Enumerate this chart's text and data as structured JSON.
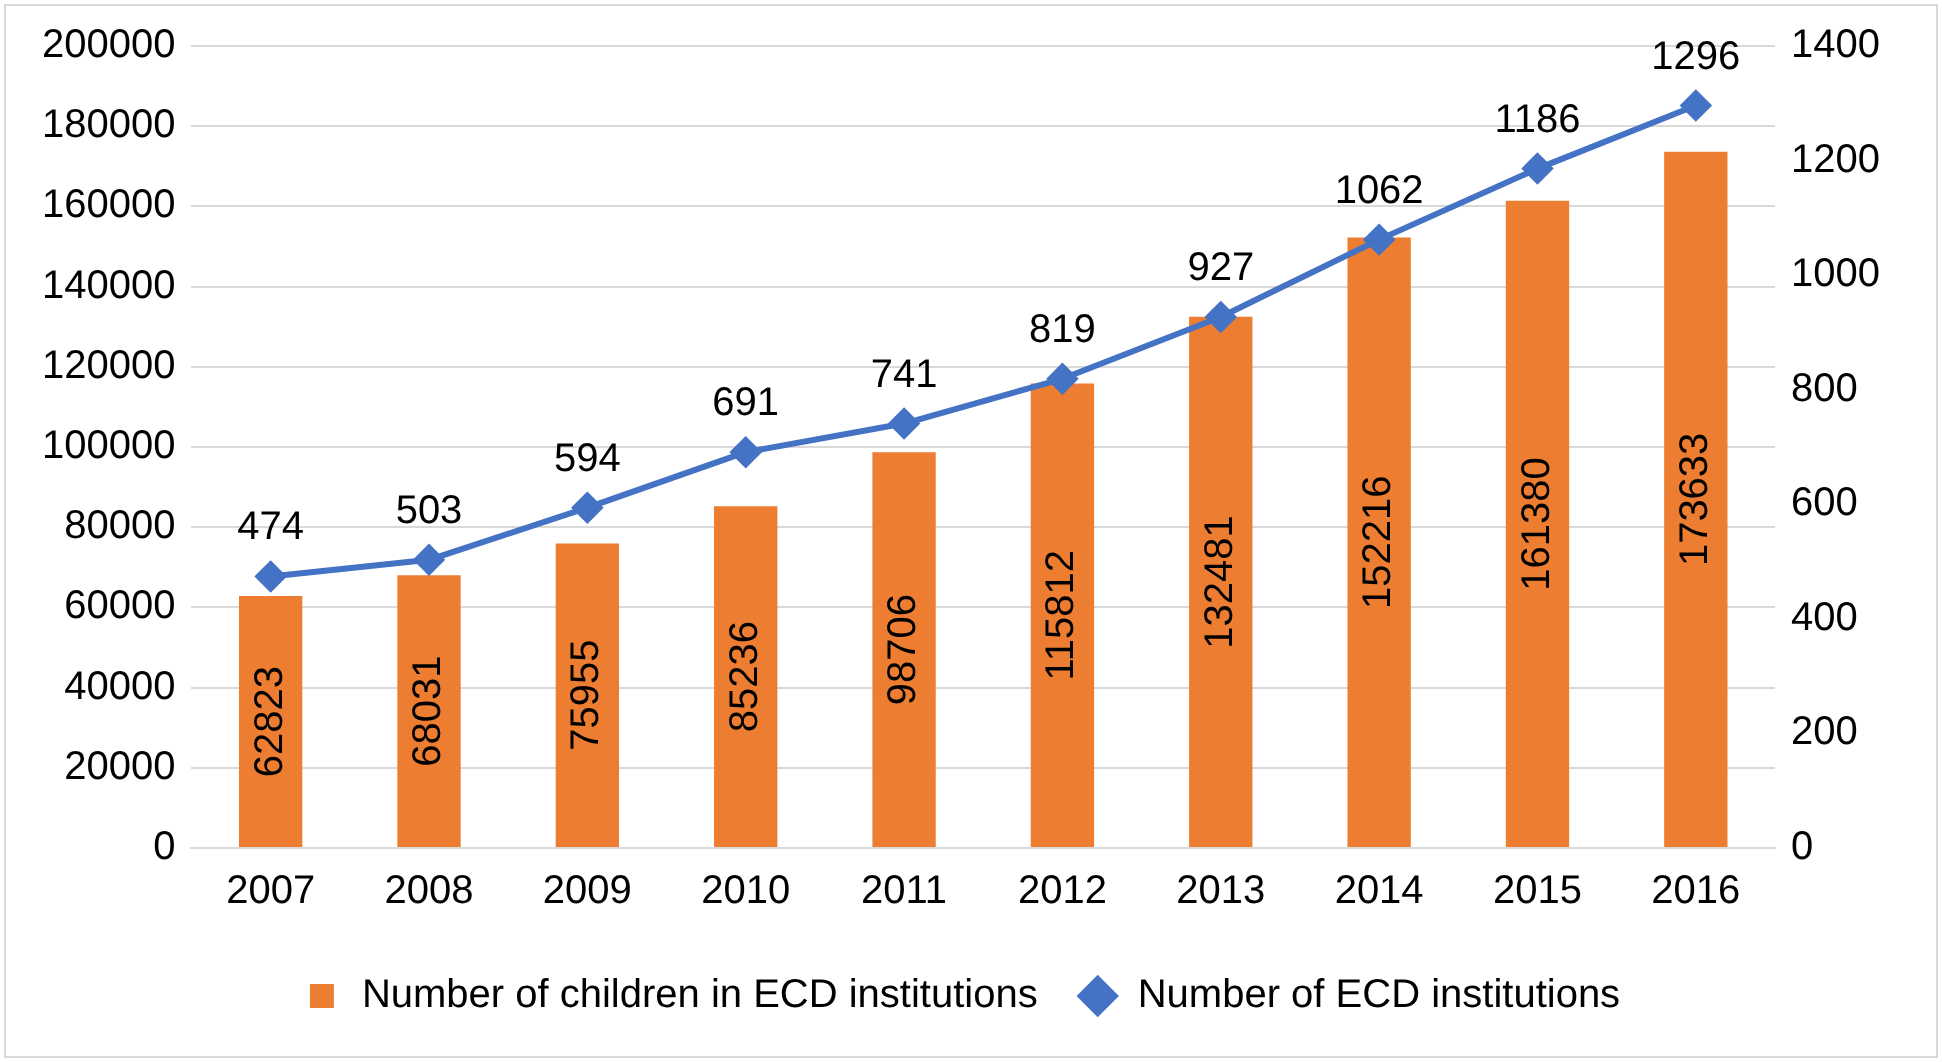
{
  "chart_data": {
    "type": "bar",
    "categories": [
      "2007",
      "2008",
      "2009",
      "2010",
      "2011",
      "2012",
      "2013",
      "2014",
      "2015",
      "2016"
    ],
    "series": [
      {
        "name": "Number of children in ECD institutions",
        "color": "#ed7d31",
        "values": [
          62823,
          68031,
          75955,
          85236,
          98706,
          115812,
          132481,
          152216,
          161380,
          173633
        ]
      },
      {
        "name": "Number of ECD institutions",
        "type": "line",
        "axis": "y2",
        "color": "#4472c4",
        "values": [
          474,
          503,
          594,
          691,
          741,
          819,
          927,
          1062,
          1186,
          1296
        ]
      }
    ],
    "ylim": [
      0,
      200000
    ],
    "yticks": [
      0,
      20000,
      40000,
      60000,
      80000,
      100000,
      120000,
      140000,
      160000,
      180000,
      200000
    ],
    "y2lim": [
      0,
      1400
    ],
    "y2ticks": [
      0,
      200,
      400,
      600,
      800,
      1000,
      1200,
      1400
    ],
    "grid": "y",
    "legend": "bottom",
    "marker": "diamond",
    "line_style": "solid",
    "data_labels": true
  }
}
